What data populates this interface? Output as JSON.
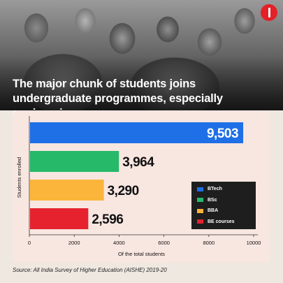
{
  "header": {
    "headline": "The major chunk of students joins undergraduate programmes, especially engineering courses."
  },
  "footer": {
    "source": "Source: All India Survey of Higher Education (AISHE) 2019-20"
  },
  "colors": {
    "BTech": "#1f6fe6",
    "BSc": "#27b96a",
    "BBA": "#fbb53a",
    "BE courses": "#e5222e",
    "bar_label": "#111111",
    "bar_label_inside": "#ffffff"
  },
  "chart_data": {
    "type": "bar",
    "orientation": "horizontal",
    "title": "",
    "xlabel": "Of the total students",
    "ylabel": "Students enrolled",
    "xlim": [
      0,
      10000
    ],
    "xticks": [
      0,
      2000,
      4000,
      6000,
      8000,
      10000
    ],
    "grid": false,
    "legend_position": "right",
    "series": [
      {
        "name": "BTech",
        "value": 9503,
        "label": "9,503"
      },
      {
        "name": "BSc",
        "value": 3964,
        "label": "3,964"
      },
      {
        "name": "BBA",
        "value": 3290,
        "label": "3,290"
      },
      {
        "name": "BE courses",
        "value": 2596,
        "label": "2,596"
      }
    ]
  }
}
